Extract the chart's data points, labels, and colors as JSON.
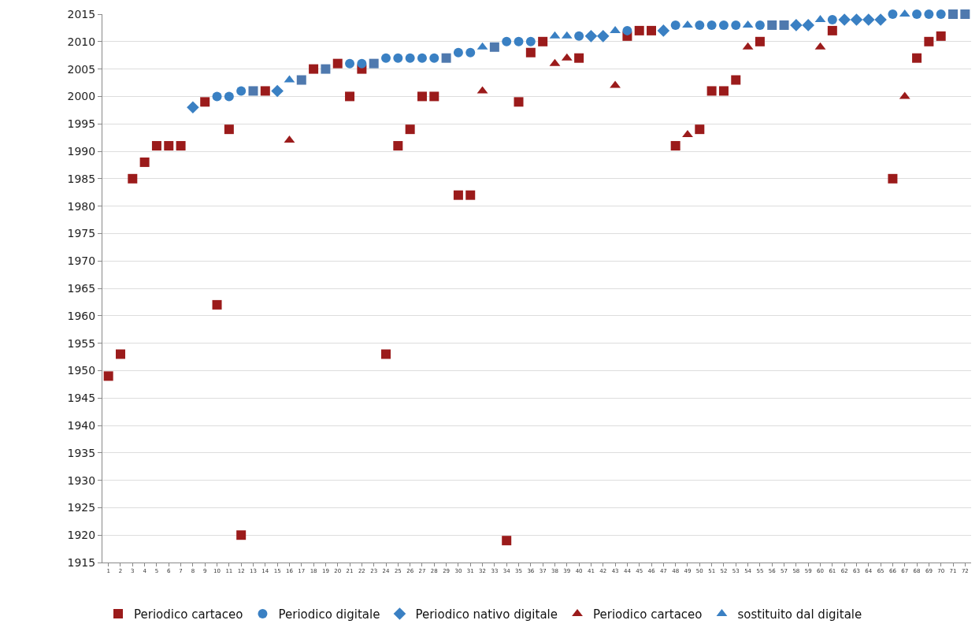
{
  "chart_data": {
    "type": "scatter",
    "xlim": [
      0.5,
      72.5
    ],
    "xticks": [
      1,
      2,
      3,
      4,
      5,
      6,
      7,
      8,
      9,
      10,
      11,
      12,
      13,
      14,
      15,
      16,
      17,
      18,
      19,
      20,
      21,
      22,
      23,
      24,
      25,
      26,
      27,
      28,
      29,
      30,
      31,
      32,
      33,
      34,
      35,
      36,
      37,
      38,
      39,
      40,
      41,
      42,
      43,
      44,
      45,
      46,
      47,
      48,
      49,
      50,
      51,
      52,
      53,
      54,
      55,
      56,
      57,
      58,
      59,
      60,
      61,
      62,
      63,
      64,
      65,
      66,
      67,
      68,
      69,
      70,
      71,
      72
    ],
    "ylim": [
      1915,
      2015
    ],
    "yticks": [
      1915,
      1920,
      1925,
      1930,
      1935,
      1940,
      1945,
      1950,
      1955,
      1960,
      1965,
      1970,
      1975,
      1980,
      1985,
      1990,
      1995,
      2000,
      2005,
      2010,
      2015
    ],
    "grid": "y",
    "legend": "bottom",
    "series": [
      {
        "name": "Periodico cartaceo",
        "marker": "square",
        "color": "#9b1b1b",
        "x": [
          1,
          2,
          3,
          4,
          5,
          6,
          7,
          9,
          10,
          11,
          12,
          13,
          14,
          17,
          18,
          19,
          20,
          21,
          22,
          23,
          24,
          25,
          26,
          27,
          28,
          29,
          30,
          31,
          33,
          34,
          35,
          36,
          37,
          40,
          44,
          45,
          46,
          48,
          50,
          51,
          52,
          53,
          55,
          56,
          57,
          61,
          66,
          68,
          69,
          70,
          71,
          72
        ],
        "values": [
          1949,
          1953,
          1985,
          1988,
          1991,
          1991,
          1991,
          1999,
          1962,
          1994,
          1920,
          2001,
          2001,
          2003,
          2005,
          2005,
          2006,
          2000,
          2005,
          2006,
          1953,
          1991,
          1994,
          2000,
          2000,
          2007,
          1982,
          1982,
          2009,
          1919,
          1999,
          2008,
          2010,
          2007,
          2011,
          2012,
          2012,
          1991,
          1994,
          2001,
          2001,
          2003,
          2010,
          2013,
          2013,
          2012,
          1985,
          2007,
          2010,
          2011,
          2015,
          2015
        ],
        "colors": [
          "#9b1b1b",
          "#9b1b1b",
          "#9b1b1b",
          "#9b1b1b",
          "#9b1b1b",
          "#9b1b1b",
          "#9b1b1b",
          "#9b1b1b",
          "#9b1b1b",
          "#9b1b1b",
          "#9b1b1b",
          "#4f79ae",
          "#9b1b1b",
          "#4f79ae",
          "#9b1b1b",
          "#4f79ae",
          "#9b1b1b",
          "#9b1b1b",
          "#9b1b1b",
          "#4f79ae",
          "#9b1b1b",
          "#9b1b1b",
          "#9b1b1b",
          "#9b1b1b",
          "#9b1b1b",
          "#4f79ae",
          "#9b1b1b",
          "#9b1b1b",
          "#4f79ae",
          "#9b1b1b",
          "#9b1b1b",
          "#9b1b1b",
          "#9b1b1b",
          "#9b1b1b",
          "#9b1b1b",
          "#9b1b1b",
          "#9b1b1b",
          "#9b1b1b",
          "#9b1b1b",
          "#9b1b1b",
          "#9b1b1b",
          "#9b1b1b",
          "#9b1b1b",
          "#4f79ae",
          "#4f79ae",
          "#9b1b1b",
          "#9b1b1b",
          "#9b1b1b",
          "#9b1b1b",
          "#9b1b1b",
          "#4f79ae",
          "#4f79ae"
        ]
      },
      {
        "name": "Periodico digitale",
        "marker": "circle",
        "color": "#3a80c3",
        "x": [
          10,
          11,
          12,
          21,
          22,
          24,
          25,
          26,
          27,
          28,
          30,
          31,
          34,
          35,
          36,
          40,
          44,
          48,
          50,
          51,
          52,
          53,
          55,
          61,
          66,
          68,
          69,
          70
        ],
        "values": [
          2000,
          2000,
          2001,
          2006,
          2006,
          2007,
          2007,
          2007,
          2007,
          2007,
          2008,
          2008,
          2010,
          2010,
          2010,
          2011,
          2012,
          2013,
          2013,
          2013,
          2013,
          2013,
          2013,
          2014,
          2015,
          2015,
          2015,
          2015
        ]
      },
      {
        "name": "Periodico nativo digitale",
        "marker": "diamond",
        "color": "#3a80c3",
        "x": [
          8,
          15,
          41,
          42,
          47,
          58,
          59,
          62,
          63,
          64,
          65
        ],
        "values": [
          1998,
          2001,
          2011,
          2011,
          2012,
          2013,
          2013,
          2014,
          2014,
          2014,
          2014
        ]
      },
      {
        "name": "Periodico cartaceo",
        "marker": "triangle",
        "color": "#9b1b1b",
        "x": [
          16,
          32,
          38,
          39,
          43,
          49,
          54,
          60,
          67
        ],
        "values": [
          1992,
          2001,
          2006,
          2007,
          2002,
          1993,
          2009,
          2009,
          2000
        ]
      },
      {
        "name": "sostituito dal digitale",
        "marker": "triangle",
        "color": "#3a80c3",
        "x": [
          16,
          32,
          38,
          39,
          43,
          49,
          54,
          60,
          67
        ],
        "values": [
          2003,
          2009,
          2011,
          2011,
          2012,
          2013,
          2013,
          2014,
          2015
        ]
      }
    ]
  }
}
